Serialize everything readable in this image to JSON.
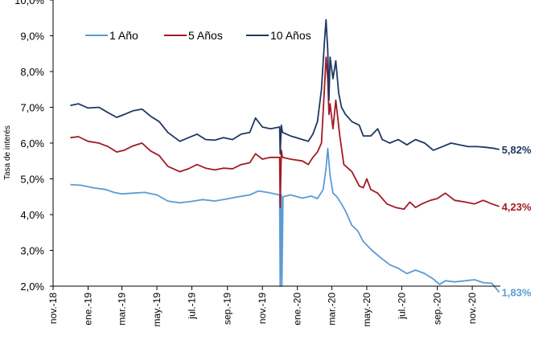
{
  "chart_data": {
    "type": "line",
    "title": "",
    "xlabel": "",
    "ylabel": "Tasa de interés",
    "ylim": [
      2.0,
      10.0
    ],
    "y_ticks": [
      "2,0%",
      "3,0%",
      "4,0%",
      "5,0%",
      "6,0%",
      "7,0%",
      "8,0%",
      "9,0%",
      "10,0%"
    ],
    "x_range": [
      "2018-11-01",
      "2020-12-20"
    ],
    "x_ticks": [
      {
        "date": "2018-11-01",
        "label": "nov.-18"
      },
      {
        "date": "2019-01-01",
        "label": "ene.-19"
      },
      {
        "date": "2019-03-01",
        "label": "mar.-19"
      },
      {
        "date": "2019-05-01",
        "label": "may.-19"
      },
      {
        "date": "2019-07-01",
        "label": "jul.-19"
      },
      {
        "date": "2019-09-01",
        "label": "sep.-19"
      },
      {
        "date": "2019-11-01",
        "label": "nov.-19"
      },
      {
        "date": "2020-01-01",
        "label": "ene.-20"
      },
      {
        "date": "2020-03-01",
        "label": "mar.-20"
      },
      {
        "date": "2020-05-01",
        "label": "may.-20"
      },
      {
        "date": "2020-07-01",
        "label": "jul.-20"
      },
      {
        "date": "2020-09-01",
        "label": "sep.-20"
      },
      {
        "date": "2020-11-01",
        "label": "nov.-20"
      }
    ],
    "grid": false,
    "legend_position": "top-left",
    "series": [
      {
        "name": "1 Año",
        "color": "#5B9BD5",
        "end_label": "1,83%",
        "points": [
          [
            "2018-12-01",
            4.84
          ],
          [
            "2018-12-20",
            4.82
          ],
          [
            "2019-01-10",
            4.75
          ],
          [
            "2019-02-01",
            4.7
          ],
          [
            "2019-02-15",
            4.62
          ],
          [
            "2019-03-01",
            4.58
          ],
          [
            "2019-03-20",
            4.6
          ],
          [
            "2019-04-10",
            4.62
          ],
          [
            "2019-05-01",
            4.55
          ],
          [
            "2019-05-20",
            4.38
          ],
          [
            "2019-06-10",
            4.33
          ],
          [
            "2019-07-01",
            4.37
          ],
          [
            "2019-07-20",
            4.42
          ],
          [
            "2019-08-10",
            4.38
          ],
          [
            "2019-09-01",
            4.44
          ],
          [
            "2019-09-20",
            4.5
          ],
          [
            "2019-10-10",
            4.55
          ],
          [
            "2019-10-25",
            4.66
          ],
          [
            "2019-11-10",
            4.62
          ],
          [
            "2019-11-25",
            4.57
          ],
          [
            "2019-12-01",
            4.55
          ],
          [
            "2019-12-02",
            2.0
          ],
          [
            "2019-12-04",
            4.55
          ],
          [
            "2019-12-05",
            2.0
          ],
          [
            "2019-12-07",
            4.5
          ],
          [
            "2019-12-20",
            4.55
          ],
          [
            "2020-01-10",
            4.46
          ],
          [
            "2020-01-25",
            4.52
          ],
          [
            "2020-02-05",
            4.45
          ],
          [
            "2020-02-15",
            4.7
          ],
          [
            "2020-02-20",
            5.3
          ],
          [
            "2020-02-23",
            5.85
          ],
          [
            "2020-02-27",
            5.1
          ],
          [
            "2020-03-03",
            4.6
          ],
          [
            "2020-03-10",
            4.5
          ],
          [
            "2020-03-18",
            4.3
          ],
          [
            "2020-03-25",
            4.1
          ],
          [
            "2020-04-05",
            3.7
          ],
          [
            "2020-04-15",
            3.55
          ],
          [
            "2020-04-25",
            3.25
          ],
          [
            "2020-05-10",
            3.0
          ],
          [
            "2020-05-25",
            2.8
          ],
          [
            "2020-06-10",
            2.6
          ],
          [
            "2020-06-25",
            2.5
          ],
          [
            "2020-07-10",
            2.35
          ],
          [
            "2020-07-25",
            2.45
          ],
          [
            "2020-08-10",
            2.35
          ],
          [
            "2020-08-25",
            2.2
          ],
          [
            "2020-09-05",
            2.05
          ],
          [
            "2020-09-15",
            2.15
          ],
          [
            "2020-10-01",
            2.12
          ],
          [
            "2020-10-20",
            2.15
          ],
          [
            "2020-11-05",
            2.18
          ],
          [
            "2020-11-20",
            2.1
          ],
          [
            "2020-12-05",
            2.08
          ],
          [
            "2020-12-18",
            1.83
          ]
        ]
      },
      {
        "name": "5 Años",
        "color": "#A21B24",
        "end_label": "4,23%",
        "points": [
          [
            "2018-12-01",
            6.15
          ],
          [
            "2018-12-15",
            6.18
          ],
          [
            "2019-01-01",
            6.05
          ],
          [
            "2019-01-20",
            6.0
          ],
          [
            "2019-02-05",
            5.9
          ],
          [
            "2019-02-20",
            5.75
          ],
          [
            "2019-03-05",
            5.8
          ],
          [
            "2019-03-20",
            5.92
          ],
          [
            "2019-04-05",
            6.0
          ],
          [
            "2019-04-20",
            5.78
          ],
          [
            "2019-05-05",
            5.65
          ],
          [
            "2019-05-20",
            5.35
          ],
          [
            "2019-06-10",
            5.2
          ],
          [
            "2019-06-25",
            5.28
          ],
          [
            "2019-07-10",
            5.4
          ],
          [
            "2019-07-25",
            5.3
          ],
          [
            "2019-08-10",
            5.25
          ],
          [
            "2019-08-25",
            5.3
          ],
          [
            "2019-09-10",
            5.28
          ],
          [
            "2019-09-25",
            5.4
          ],
          [
            "2019-10-10",
            5.45
          ],
          [
            "2019-10-20",
            5.7
          ],
          [
            "2019-11-01",
            5.55
          ],
          [
            "2019-11-15",
            5.6
          ],
          [
            "2019-12-01",
            5.6
          ],
          [
            "2019-12-02",
            4.2
          ],
          [
            "2019-12-04",
            5.8
          ],
          [
            "2019-12-06",
            5.6
          ],
          [
            "2019-12-20",
            5.55
          ],
          [
            "2020-01-10",
            5.5
          ],
          [
            "2020-01-20",
            5.4
          ],
          [
            "2020-01-28",
            5.6
          ],
          [
            "2020-02-05",
            5.75
          ],
          [
            "2020-02-12",
            6.0
          ],
          [
            "2020-02-17",
            7.5
          ],
          [
            "2020-02-20",
            8.4
          ],
          [
            "2020-02-23",
            7.8
          ],
          [
            "2020-02-25",
            6.8
          ],
          [
            "2020-02-27",
            7.1
          ],
          [
            "2020-03-03",
            6.4
          ],
          [
            "2020-03-08",
            7.2
          ],
          [
            "2020-03-15",
            6.2
          ],
          [
            "2020-03-22",
            5.4
          ],
          [
            "2020-04-05",
            5.2
          ],
          [
            "2020-04-18",
            4.8
          ],
          [
            "2020-04-25",
            4.75
          ],
          [
            "2020-05-01",
            5.0
          ],
          [
            "2020-05-08",
            4.7
          ],
          [
            "2020-05-20",
            4.6
          ],
          [
            "2020-06-05",
            4.3
          ],
          [
            "2020-06-20",
            4.2
          ],
          [
            "2020-07-05",
            4.15
          ],
          [
            "2020-07-15",
            4.35
          ],
          [
            "2020-07-25",
            4.2
          ],
          [
            "2020-08-05",
            4.3
          ],
          [
            "2020-08-20",
            4.4
          ],
          [
            "2020-09-01",
            4.45
          ],
          [
            "2020-09-15",
            4.6
          ],
          [
            "2020-10-01",
            4.4
          ],
          [
            "2020-10-20",
            4.35
          ],
          [
            "2020-11-05",
            4.3
          ],
          [
            "2020-11-20",
            4.4
          ],
          [
            "2020-12-05",
            4.3
          ],
          [
            "2020-12-18",
            4.23
          ]
        ]
      },
      {
        "name": "10 Años",
        "color": "#1F3864",
        "end_label": "5,82%",
        "points": [
          [
            "2018-12-01",
            7.05
          ],
          [
            "2018-12-15",
            7.1
          ],
          [
            "2019-01-01",
            6.98
          ],
          [
            "2019-01-20",
            7.0
          ],
          [
            "2019-02-05",
            6.85
          ],
          [
            "2019-02-20",
            6.72
          ],
          [
            "2019-03-05",
            6.8
          ],
          [
            "2019-03-20",
            6.9
          ],
          [
            "2019-04-05",
            6.95
          ],
          [
            "2019-04-20",
            6.75
          ],
          [
            "2019-05-05",
            6.6
          ],
          [
            "2019-05-20",
            6.3
          ],
          [
            "2019-06-10",
            6.05
          ],
          [
            "2019-06-25",
            6.15
          ],
          [
            "2019-07-10",
            6.25
          ],
          [
            "2019-07-25",
            6.1
          ],
          [
            "2019-08-10",
            6.08
          ],
          [
            "2019-08-25",
            6.15
          ],
          [
            "2019-09-10",
            6.1
          ],
          [
            "2019-09-25",
            6.25
          ],
          [
            "2019-10-10",
            6.3
          ],
          [
            "2019-10-20",
            6.7
          ],
          [
            "2019-11-01",
            6.45
          ],
          [
            "2019-11-15",
            6.4
          ],
          [
            "2019-12-01",
            6.45
          ],
          [
            "2019-12-02",
            5.7
          ],
          [
            "2019-12-04",
            6.5
          ],
          [
            "2019-12-06",
            6.3
          ],
          [
            "2019-12-20",
            6.2
          ],
          [
            "2020-01-10",
            6.1
          ],
          [
            "2020-01-20",
            6.05
          ],
          [
            "2020-01-28",
            6.25
          ],
          [
            "2020-02-05",
            6.6
          ],
          [
            "2020-02-12",
            7.5
          ],
          [
            "2020-02-17",
            8.8
          ],
          [
            "2020-02-20",
            9.45
          ],
          [
            "2020-02-23",
            8.6
          ],
          [
            "2020-02-25",
            7.2
          ],
          [
            "2020-02-27",
            8.4
          ],
          [
            "2020-03-03",
            7.8
          ],
          [
            "2020-03-08",
            8.3
          ],
          [
            "2020-03-13",
            7.4
          ],
          [
            "2020-03-18",
            7.0
          ],
          [
            "2020-03-25",
            6.8
          ],
          [
            "2020-04-05",
            6.6
          ],
          [
            "2020-04-18",
            6.5
          ],
          [
            "2020-04-25",
            6.2
          ],
          [
            "2020-05-08",
            6.2
          ],
          [
            "2020-05-20",
            6.4
          ],
          [
            "2020-05-28",
            6.1
          ],
          [
            "2020-06-10",
            6.0
          ],
          [
            "2020-06-25",
            6.1
          ],
          [
            "2020-07-10",
            5.95
          ],
          [
            "2020-07-25",
            6.1
          ],
          [
            "2020-08-10",
            6.0
          ],
          [
            "2020-08-25",
            5.8
          ],
          [
            "2020-09-10",
            5.9
          ],
          [
            "2020-09-25",
            6.0
          ],
          [
            "2020-10-10",
            5.95
          ],
          [
            "2020-10-25",
            5.9
          ],
          [
            "2020-11-10",
            5.9
          ],
          [
            "2020-11-25",
            5.88
          ],
          [
            "2020-12-10",
            5.85
          ],
          [
            "2020-12-18",
            5.82
          ]
        ]
      }
    ]
  }
}
